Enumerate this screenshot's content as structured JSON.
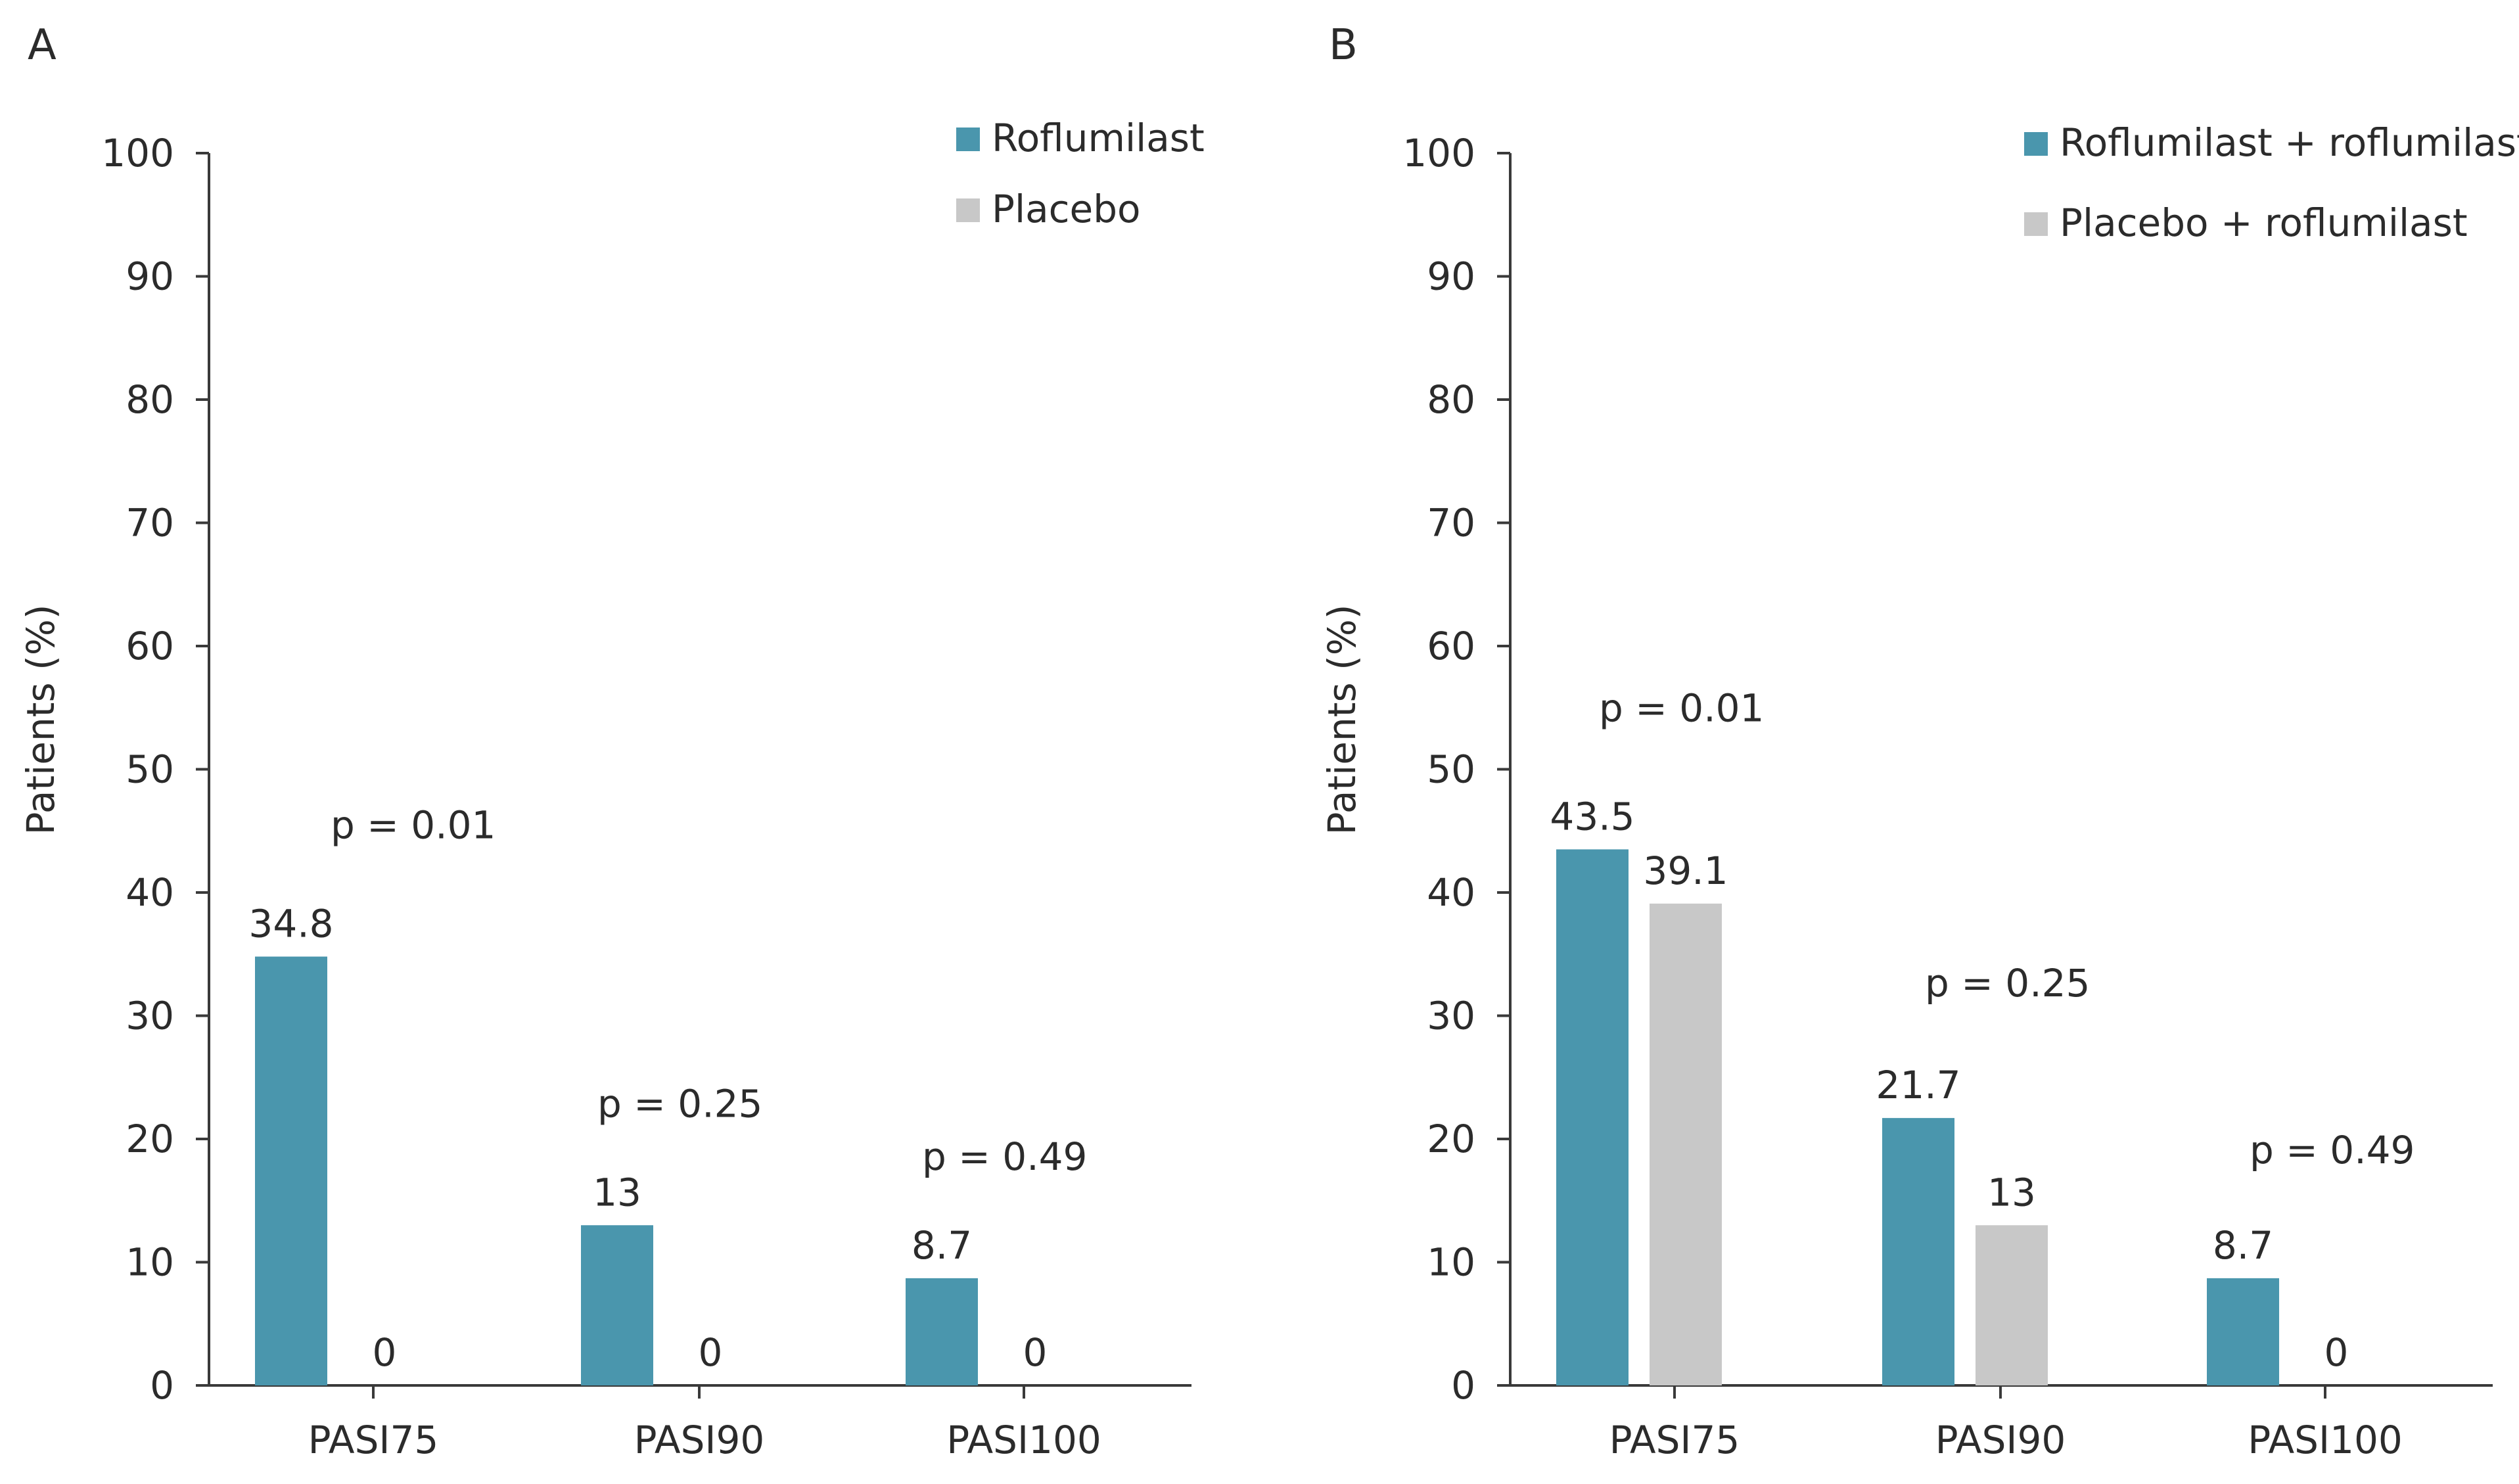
{
  "colors": {
    "series_primary": "#4a96ad",
    "series_secondary": "#c8c8c8",
    "axis": "#3a3a3a",
    "text": "#2b2b2b"
  },
  "chart_data": [
    {
      "type": "bar",
      "panel_label": "A",
      "categories": [
        "PASI75",
        "PASI90",
        "PASI100"
      ],
      "series": [
        {
          "name": "Roflumilast",
          "values": [
            34.8,
            13,
            8.7
          ],
          "labels": [
            "34.8",
            "13",
            "8.7"
          ]
        },
        {
          "name": "Placebo",
          "values": [
            0,
            0,
            0
          ],
          "labels": [
            "0",
            "0",
            "0"
          ]
        }
      ],
      "p_values": [
        "p = 0.01",
        "p = 0.25",
        "p = 0.49"
      ],
      "ylabel": "Patients (%)",
      "ylim": [
        0,
        100
      ],
      "yticks": [
        "0",
        "10",
        "20",
        "30",
        "40",
        "50",
        "60",
        "70",
        "80",
        "90",
        "100"
      ],
      "grid": false,
      "legend_position": "top-right"
    },
    {
      "type": "bar",
      "panel_label": "B",
      "categories": [
        "PASI75",
        "PASI90",
        "PASI100"
      ],
      "series": [
        {
          "name": "Roflumilast + roflumilast",
          "values": [
            43.5,
            21.7,
            8.7
          ],
          "labels": [
            "43.5",
            "21.7",
            "8.7"
          ]
        },
        {
          "name": "Placebo + roflumilast",
          "values": [
            39.1,
            13,
            0
          ],
          "labels": [
            "39.1",
            "13",
            "0"
          ]
        }
      ],
      "p_values": [
        "p = 0.01",
        "p = 0.25",
        "p = 0.49"
      ],
      "ylabel": "Patients (%)",
      "ylim": [
        0,
        100
      ],
      "yticks": [
        "0",
        "10",
        "20",
        "30",
        "40",
        "50",
        "60",
        "70",
        "80",
        "90",
        "100"
      ],
      "grid": false,
      "legend_position": "top-right"
    }
  ]
}
